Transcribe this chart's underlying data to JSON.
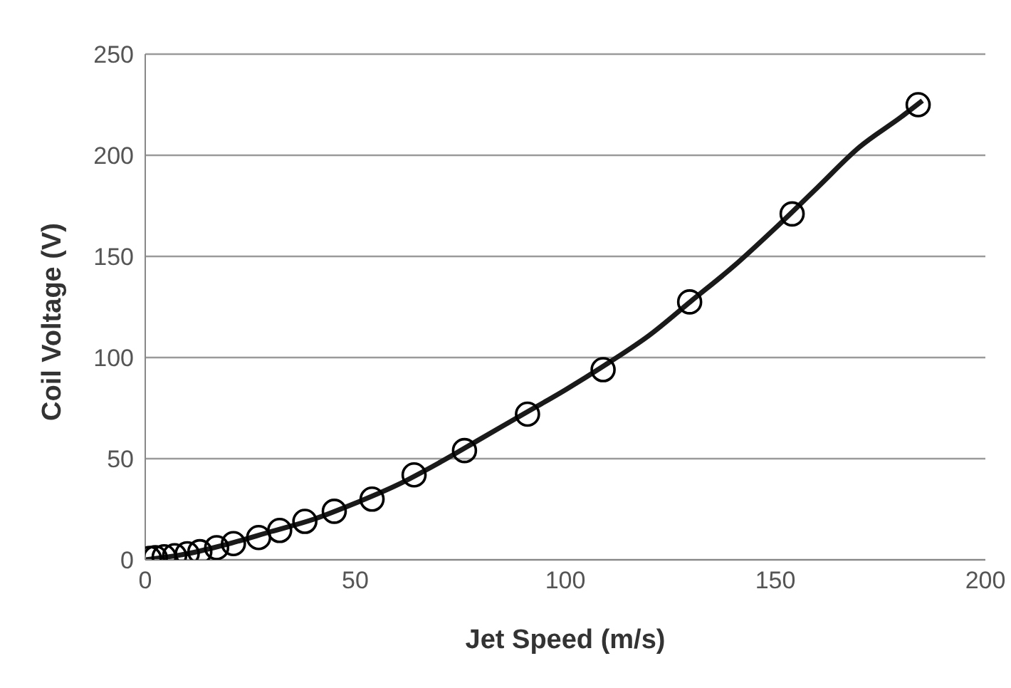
{
  "chart_data": {
    "type": "scatter",
    "xlabel": "Jet Speed (m/s)",
    "ylabel": "Coil Voltage (V)",
    "xlim": [
      0,
      200
    ],
    "xticks": [
      0,
      50,
      100,
      150,
      200
    ],
    "ylim": [
      0,
      250
    ],
    "yticks": [
      0,
      50,
      100,
      150,
      200,
      250
    ],
    "grid": "y",
    "series": [
      {
        "marker": "circle",
        "color": "#000000",
        "x": [
          1,
          2.4,
          4.5,
          7,
          10,
          13,
          17,
          21,
          27,
          32,
          38,
          45,
          54,
          64,
          76,
          91,
          109,
          129.6,
          154,
          184
        ],
        "values": [
          0.7,
          1,
          1.5,
          2,
          3,
          4,
          6,
          8,
          11,
          14.5,
          19,
          24,
          30,
          42,
          54,
          72,
          94,
          127.5,
          171,
          225
        ]
      },
      {
        "type": "line",
        "color": "#1a1a1a",
        "line_style": "solid",
        "x": [
          0,
          10,
          20,
          30,
          40,
          50,
          60,
          70,
          80,
          90,
          100,
          110,
          120,
          130,
          140,
          150,
          160,
          170,
          180,
          185
        ],
        "values": [
          0,
          3,
          8,
          14,
          20,
          28,
          37,
          48,
          60,
          72,
          84,
          97,
          111,
          128,
          145,
          164,
          184,
          204,
          219,
          227
        ]
      }
    ]
  }
}
